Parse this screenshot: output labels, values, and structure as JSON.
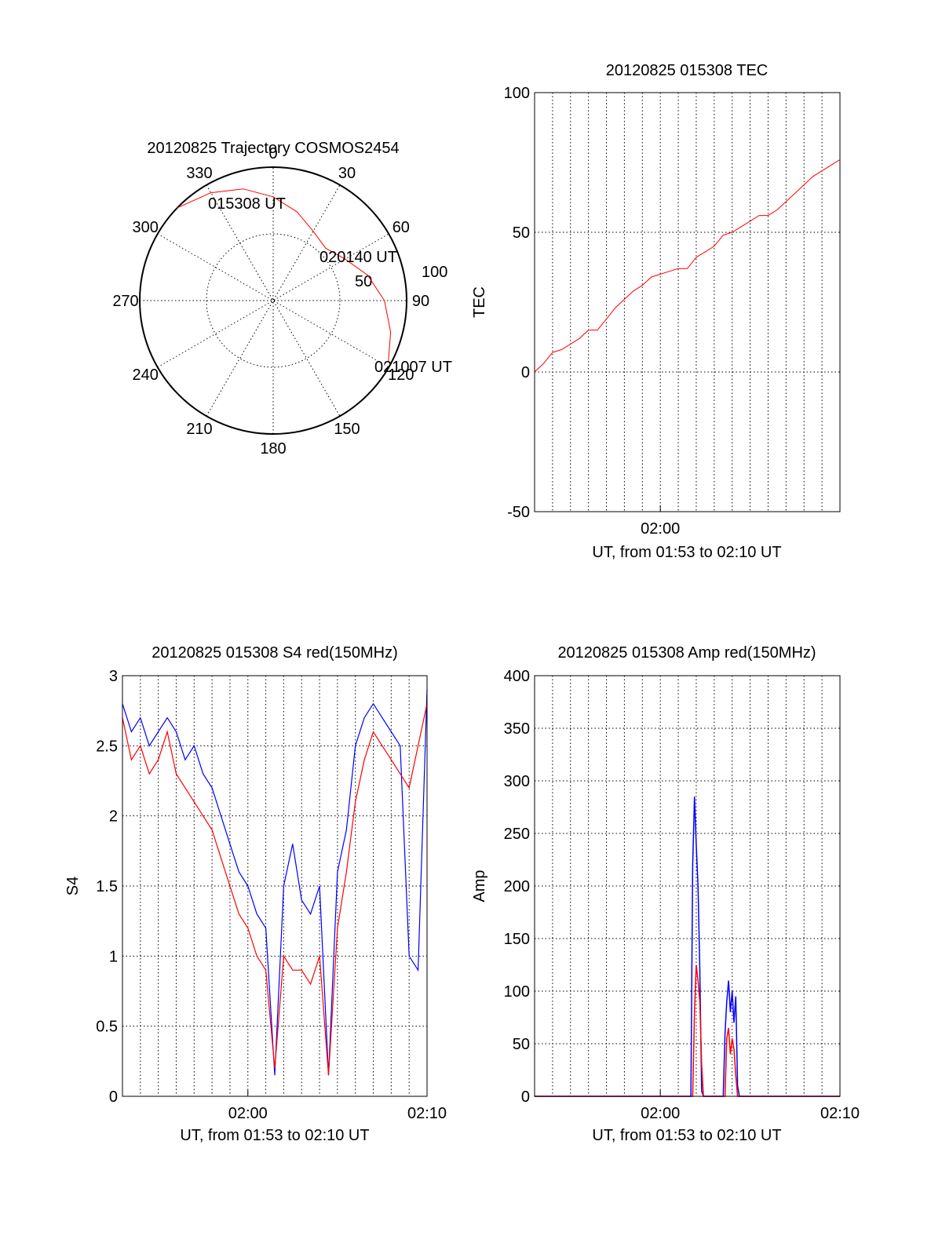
{
  "chart_data": [
    {
      "type": "polar",
      "title": "20120825 Trajectory COSMOS2454",
      "azimuth_labels": [
        "0",
        "30",
        "60",
        "90",
        "120",
        "150",
        "180",
        "210",
        "240",
        "270",
        "300",
        "330"
      ],
      "radius_labels": [
        "50",
        "100"
      ],
      "start_label": "015308 UT",
      "mid_label": "020140 UT",
      "end_label": "021007 UT",
      "series": [
        {
          "color": "#ff0000",
          "points_az_el": [
            [
              -46,
              0
            ],
            [
              -30,
              6
            ],
            [
              -15,
              12
            ],
            [
              0,
              20
            ],
            [
              15,
              28
            ],
            [
              30,
              36
            ],
            [
              45,
              40
            ],
            [
              60,
              34
            ],
            [
              75,
              24
            ],
            [
              90,
              15
            ],
            [
              105,
              8
            ],
            [
              118,
              2
            ]
          ]
        }
      ]
    },
    {
      "type": "line",
      "title": "20120825 015308 TEC",
      "ylabel": "TEC",
      "xlabel": "UT, from 01:53 to 02:10 UT",
      "x_range_minutes": [
        0,
        17
      ],
      "ylim": [
        -50,
        100
      ],
      "yticks": [
        "-50",
        "0",
        "50",
        "100"
      ],
      "xticks": [
        {
          "minute": 7,
          "label": "02:00"
        }
      ],
      "grid": true,
      "series": [
        {
          "color": "#ff0000",
          "x": [
            0,
            0.5,
            1,
            1.5,
            2,
            2.5,
            3,
            3.5,
            4,
            4.5,
            5,
            5.5,
            6,
            6.5,
            7,
            7.5,
            8,
            8.5,
            9,
            9.5,
            10,
            10.5,
            11,
            11.5,
            12,
            12.5,
            13,
            13.5,
            14,
            14.5,
            15,
            15.5,
            16,
            16.5,
            17
          ],
          "y": [
            0,
            3,
            7,
            8,
            10,
            12,
            15,
            15,
            19,
            23,
            26,
            29,
            31,
            34,
            35,
            36,
            37,
            37,
            41,
            43,
            45,
            49,
            50,
            52,
            54,
            56,
            56,
            58,
            61,
            64,
            67,
            70,
            72,
            74,
            76
          ]
        }
      ]
    },
    {
      "type": "line",
      "title": "20120825 015308 S4 red(150MHz)",
      "ylabel": "S4",
      "xlabel": "UT, from 01:53 to 02:10 UT",
      "x_range_minutes": [
        0,
        17
      ],
      "ylim": [
        0,
        3
      ],
      "yticks": [
        "0",
        "0.5",
        "1",
        "1.5",
        "2",
        "2.5",
        "3"
      ],
      "xticks": [
        {
          "minute": 7,
          "label": "02:00"
        },
        {
          "minute": 17,
          "label": "02:10"
        }
      ],
      "grid": true,
      "series": [
        {
          "color": "#0000ff",
          "x": [
            0,
            0.5,
            1,
            1.5,
            2,
            2.5,
            3,
            3.5,
            4,
            4.5,
            5,
            5.5,
            6,
            6.5,
            7,
            7.5,
            8,
            8.5,
            9,
            9.5,
            10,
            10.5,
            11,
            11.5,
            12,
            12.5,
            13,
            13.5,
            14,
            14.5,
            15,
            15.5,
            16,
            16.5,
            17
          ],
          "y": [
            2.8,
            2.6,
            2.7,
            2.5,
            2.6,
            2.7,
            2.6,
            2.4,
            2.5,
            2.3,
            2.2,
            2.0,
            1.8,
            1.6,
            1.5,
            1.3,
            1.2,
            0.15,
            1.5,
            1.8,
            1.4,
            1.3,
            1.5,
            0.15,
            1.6,
            1.9,
            2.5,
            2.7,
            2.8,
            2.7,
            2.6,
            2.5,
            1.0,
            0.9,
            2.9
          ]
        },
        {
          "color": "#ff0000",
          "x": [
            0,
            0.5,
            1,
            1.5,
            2,
            2.5,
            3,
            3.5,
            4,
            4.5,
            5,
            5.5,
            6,
            6.5,
            7,
            7.5,
            8,
            8.5,
            9,
            9.5,
            10,
            10.5,
            11,
            11.5,
            12,
            12.5,
            13,
            13.5,
            14,
            14.5,
            15,
            15.5,
            16,
            16.5,
            17
          ],
          "y": [
            2.7,
            2.4,
            2.5,
            2.3,
            2.4,
            2.6,
            2.3,
            2.2,
            2.1,
            2.0,
            1.9,
            1.7,
            1.5,
            1.3,
            1.2,
            1.0,
            0.9,
            0.2,
            1.0,
            0.9,
            0.9,
            0.8,
            1.0,
            0.15,
            1.2,
            1.6,
            2.1,
            2.4,
            2.6,
            2.5,
            2.4,
            2.3,
            2.2,
            2.5,
            2.8
          ]
        }
      ]
    },
    {
      "type": "line",
      "title": "20120825 015308 Amp red(150MHz)",
      "ylabel": "Amp",
      "xlabel": "UT, from 01:53 to 02:10 UT",
      "x_range_minutes": [
        0,
        17
      ],
      "ylim": [
        0,
        400
      ],
      "yticks": [
        "0",
        "50",
        "100",
        "150",
        "200",
        "250",
        "300",
        "350",
        "400"
      ],
      "xticks": [
        {
          "minute": 7,
          "label": "02:00"
        },
        {
          "minute": 17,
          "label": "02:10"
        }
      ],
      "grid": true,
      "series": [
        {
          "color": "#0000ff",
          "x": [
            0,
            8.7,
            8.8,
            8.9,
            9.0,
            9.1,
            9.2,
            9.3,
            9.4,
            10.5,
            10.6,
            10.7,
            10.8,
            10.9,
            11.0,
            11.1,
            11.2,
            11.3,
            11.4,
            17
          ],
          "y": [
            0,
            0,
            220,
            285,
            240,
            200,
            120,
            5,
            0,
            0,
            60,
            90,
            110,
            80,
            100,
            70,
            95,
            10,
            0,
            0
          ]
        },
        {
          "color": "#ff0000",
          "x": [
            0,
            8.8,
            8.9,
            9.0,
            9.1,
            9.2,
            9.3,
            9.4,
            10.6,
            10.7,
            10.8,
            10.9,
            11.0,
            11.1,
            11.2,
            11.3,
            17
          ],
          "y": [
            0,
            0,
            80,
            125,
            110,
            90,
            30,
            0,
            0,
            55,
            65,
            40,
            55,
            45,
            20,
            0,
            0
          ]
        }
      ]
    }
  ]
}
